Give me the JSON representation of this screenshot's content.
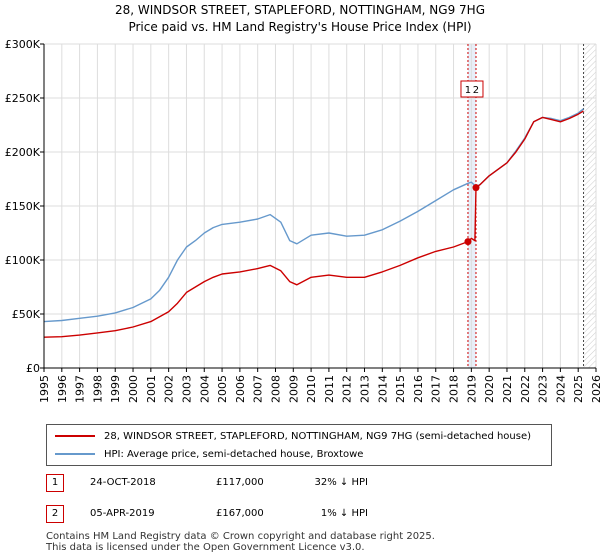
{
  "title_line1": "28, WINDSOR STREET, STAPLEFORD, NOTTINGHAM, NG9 7HG",
  "title_line2": "Price paid vs. HM Land Registry's House Price Index (HPI)",
  "colors": {
    "property": "#cc0000",
    "hpi": "#6699cc",
    "grid": "#dddddd",
    "vband": "#e8eef8",
    "marker_line": "#cc0000"
  },
  "chart_data": {
    "type": "line",
    "title": "Price paid vs. HM Land Registry's House Price Index (HPI)",
    "xlabel": "",
    "ylabel": "",
    "xlim": [
      1995,
      2026
    ],
    "ylim": [
      0,
      300000
    ],
    "yticks": [
      0,
      50000,
      100000,
      150000,
      200000,
      250000,
      300000
    ],
    "ytick_labels": [
      "£0",
      "£50K",
      "£100K",
      "£150K",
      "£200K",
      "£250K",
      "£300K"
    ],
    "xticks": [
      1995,
      1996,
      1997,
      1998,
      1999,
      2000,
      2001,
      2002,
      2003,
      2004,
      2005,
      2006,
      2007,
      2008,
      2009,
      2010,
      2011,
      2012,
      2013,
      2014,
      2015,
      2016,
      2017,
      2018,
      2019,
      2020,
      2021,
      2022,
      2023,
      2024,
      2025,
      2026
    ],
    "grid": true,
    "highlight_band": [
      2018.81,
      2019.26
    ],
    "future_start": 2025.3,
    "series": [
      {
        "name": "28, WINDSOR STREET, STAPLEFORD, NOTTINGHAM, NG9 7HG (semi-detached house)",
        "color": "#cc0000",
        "x": [
          1995.0,
          1996.0,
          1997.0,
          1998.0,
          1999.0,
          2000.0,
          2001.0,
          2002.0,
          2002.5,
          2003.0,
          2003.5,
          2004.0,
          2004.5,
          2005.0,
          2006.0,
          2007.0,
          2007.7,
          2008.3,
          2008.8,
          2009.2,
          2010.0,
          2011.0,
          2012.0,
          2013.0,
          2014.0,
          2015.0,
          2016.0,
          2017.0,
          2018.0,
          2018.81,
          2019.0,
          2019.2,
          2019.26,
          2019.5,
          2020.0,
          2020.5,
          2021.0,
          2021.5,
          2022.0,
          2022.5,
          2023.0,
          2023.5,
          2024.0,
          2024.5,
          2025.0,
          2025.3
        ],
        "values": [
          28500,
          29000,
          30500,
          32500,
          34500,
          38000,
          43000,
          52000,
          60000,
          70000,
          75000,
          80000,
          84000,
          87000,
          89000,
          92000,
          95000,
          90000,
          80000,
          77000,
          84000,
          86000,
          84000,
          84000,
          89000,
          95000,
          102000,
          108000,
          112000,
          117000,
          120000,
          118000,
          167000,
          170000,
          178000,
          184000,
          190000,
          200000,
          212000,
          228000,
          232000,
          230000,
          228000,
          231000,
          235000,
          238000
        ]
      },
      {
        "name": "HPI: Average price, semi-detached house, Broxtowe",
        "color": "#6699cc",
        "x": [
          1995.0,
          1996.0,
          1997.0,
          1998.0,
          1999.0,
          2000.0,
          2001.0,
          2001.5,
          2002.0,
          2002.5,
          2003.0,
          2003.5,
          2004.0,
          2004.5,
          2005.0,
          2006.0,
          2007.0,
          2007.7,
          2008.3,
          2008.8,
          2009.2,
          2010.0,
          2011.0,
          2012.0,
          2013.0,
          2014.0,
          2015.0,
          2016.0,
          2017.0,
          2018.0,
          2018.81,
          2019.0,
          2019.26,
          2019.5,
          2020.0,
          2020.5,
          2021.0,
          2021.5,
          2022.0,
          2022.5,
          2023.0,
          2023.5,
          2024.0,
          2024.5,
          2025.0,
          2025.3
        ],
        "values": [
          43000,
          44000,
          46000,
          48000,
          51000,
          56000,
          64000,
          72000,
          84000,
          100000,
          112000,
          118000,
          125000,
          130000,
          133000,
          135000,
          138000,
          142000,
          135000,
          118000,
          115000,
          123000,
          125000,
          122000,
          123000,
          128000,
          136000,
          145000,
          155000,
          165000,
          171000,
          172000,
          168000,
          170000,
          178000,
          184000,
          190000,
          201000,
          213000,
          228000,
          232000,
          231000,
          229000,
          232000,
          236000,
          240000
        ]
      }
    ],
    "annotations": [
      {
        "label": "1",
        "x": 2018.81
      },
      {
        "label": "2",
        "x": 2019.26
      }
    ],
    "sale_points": [
      {
        "x": 2018.81,
        "y": 117000
      },
      {
        "x": 2019.26,
        "y": 167000
      }
    ]
  },
  "legend": {
    "property_label": "28, WINDSOR STREET, STAPLEFORD, NOTTINGHAM, NG9 7HG (semi-detached house)",
    "hpi_label": "HPI: Average price, semi-detached house, Broxtowe"
  },
  "transactions": [
    {
      "num": "1",
      "date": "24-OCT-2018",
      "price": "£117,000",
      "hpi_diff": "32% ↓ HPI"
    },
    {
      "num": "2",
      "date": "05-APR-2019",
      "price": "£167,000",
      "hpi_diff": "1% ↓ HPI"
    }
  ],
  "footer_line1": "Contains HM Land Registry data © Crown copyright and database right 2025.",
  "footer_line2": "This data is licensed under the Open Government Licence v3.0."
}
